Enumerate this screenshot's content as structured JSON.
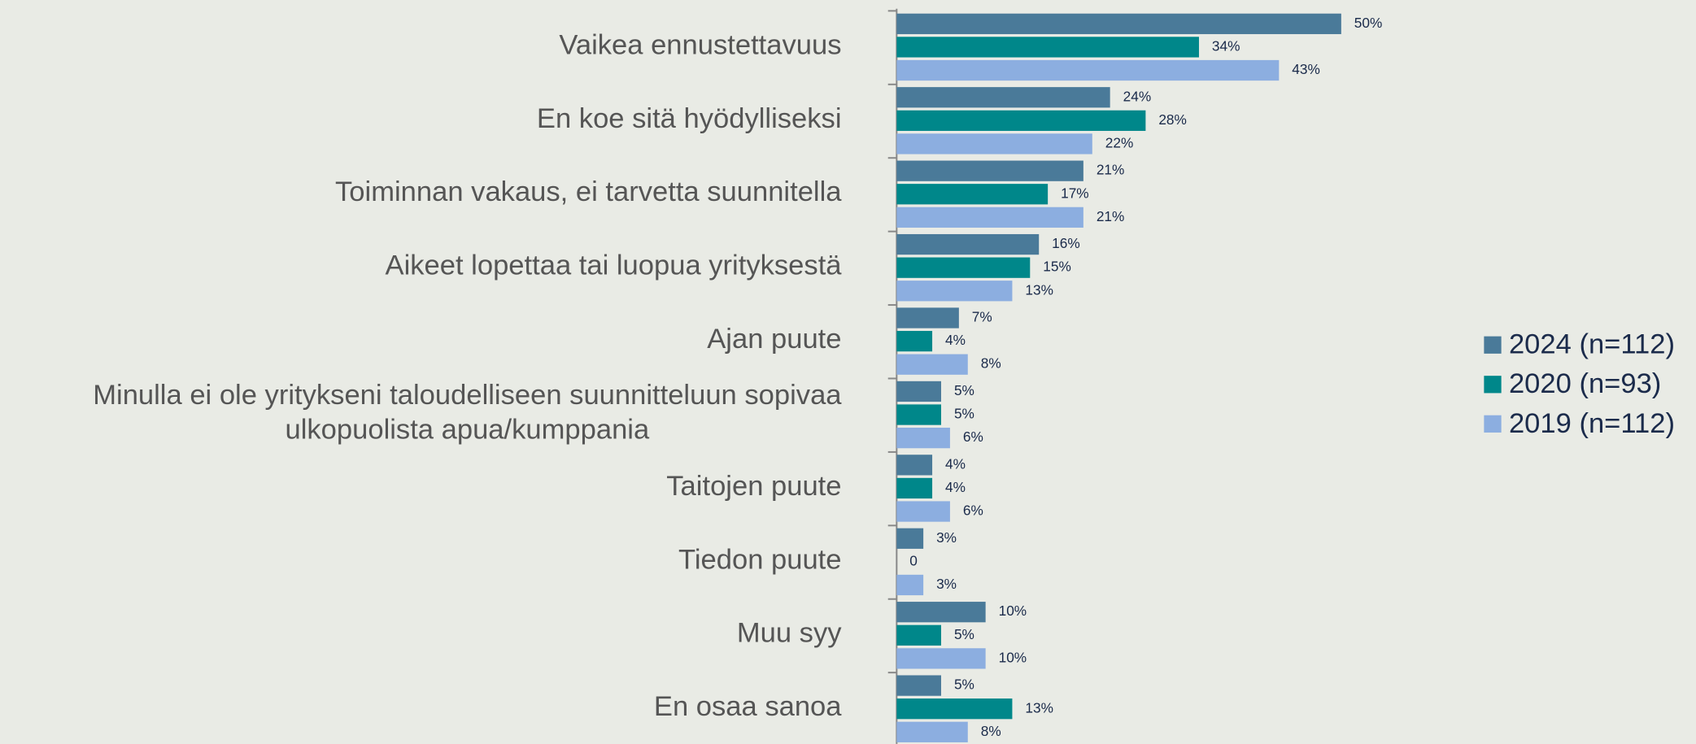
{
  "chart_data": {
    "type": "hbar",
    "categories": [
      "Vaikea ennustettavuus",
      "En koe sitä hyödylliseksi",
      "Toiminnan vakaus, ei tarvetta suunnitella",
      "Aikeet lopettaa tai luopua yrityksestä",
      "Ajan puute",
      "Minulla ei ole yritykseni taloudelliseen suunnitteluun sopivaa ulkopuolista apua/kumppania",
      "Taitojen puute",
      "Tiedon puute",
      "Muu syy",
      "En osaa sanoa"
    ],
    "series": [
      {
        "name": "2024 (n=112)",
        "color": "#4a7a99",
        "values": [
          50,
          24,
          21,
          16,
          7,
          5,
          4,
          3,
          10,
          5
        ],
        "value_labels": [
          "50%",
          "24%",
          "21%",
          "16%",
          "7%",
          "5%",
          "4%",
          "3%",
          "10%",
          "5%"
        ]
      },
      {
        "name": "2020 (n=93)",
        "color": "#00878a",
        "values": [
          34,
          28,
          17,
          15,
          4,
          5,
          4,
          0,
          5,
          13
        ],
        "value_labels": [
          "34%",
          "28%",
          "17%",
          "15%",
          "4%",
          "5%",
          "4%",
          "0",
          "5%",
          "13%"
        ]
      },
      {
        "name": "2019 (n=112)",
        "color": "#8caee0",
        "values": [
          43,
          22,
          21,
          13,
          8,
          6,
          6,
          3,
          10,
          8
        ],
        "value_labels": [
          "43%",
          "22%",
          "21%",
          "13%",
          "8%",
          "6%",
          "6%",
          "3%",
          "10%",
          "8%"
        ]
      }
    ],
    "legend": "right"
  }
}
